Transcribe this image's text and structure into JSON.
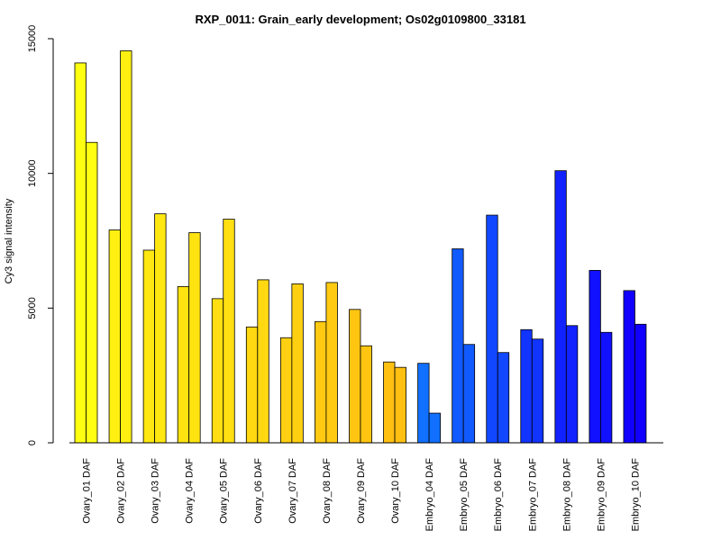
{
  "chart_data": {
    "type": "bar",
    "title": "RXP_0011: Grain_early development; Os02g0109800_33181",
    "ylabel": "Cy3 signal intensity",
    "xlabel": "",
    "ylim": [
      0,
      15000
    ],
    "yticks": [
      0,
      5000,
      10000,
      15000
    ],
    "grid": false,
    "categories": [
      "Ovary_01 DAF",
      "Ovary_02 DAF",
      "Ovary_03 DAF",
      "Ovary_04 DAF",
      "Ovary_05 DAF",
      "Ovary_06 DAF",
      "Ovary_07 DAF",
      "Ovary_08 DAF",
      "Ovary_09 DAF",
      "Ovary_10 DAF",
      "Embryo_04 DAF",
      "Embryo_05 DAF",
      "Embryo_06 DAF",
      "Embryo_07 DAF",
      "Embryo_08 DAF",
      "Embryo_09 DAF",
      "Embryo_10 DAF"
    ],
    "series": [
      {
        "values": [
          14100,
          7900,
          7150,
          5800,
          5350,
          4300,
          3900,
          4500,
          4950,
          3000,
          2950,
          7200,
          8450,
          4200,
          10100,
          6400,
          5650
        ]
      },
      {
        "values": [
          11150,
          14550,
          8500,
          7800,
          8300,
          6050,
          5900,
          5950,
          3600,
          2800,
          1100,
          3650,
          3350,
          3850,
          4350,
          4100,
          4400
        ]
      }
    ],
    "colors": [
      "#FFFF11",
      "#FFF011",
      "#FFE811",
      "#FFE311",
      "#FFDF11",
      "#FFD811",
      "#FFD011",
      "#FFCA11",
      "#FFC511",
      "#FFC011",
      "#1170FF",
      "#115AFF",
      "#1148FF",
      "#1134FF",
      "#1122FF",
      "#1111FF",
      "#1100FF"
    ]
  }
}
